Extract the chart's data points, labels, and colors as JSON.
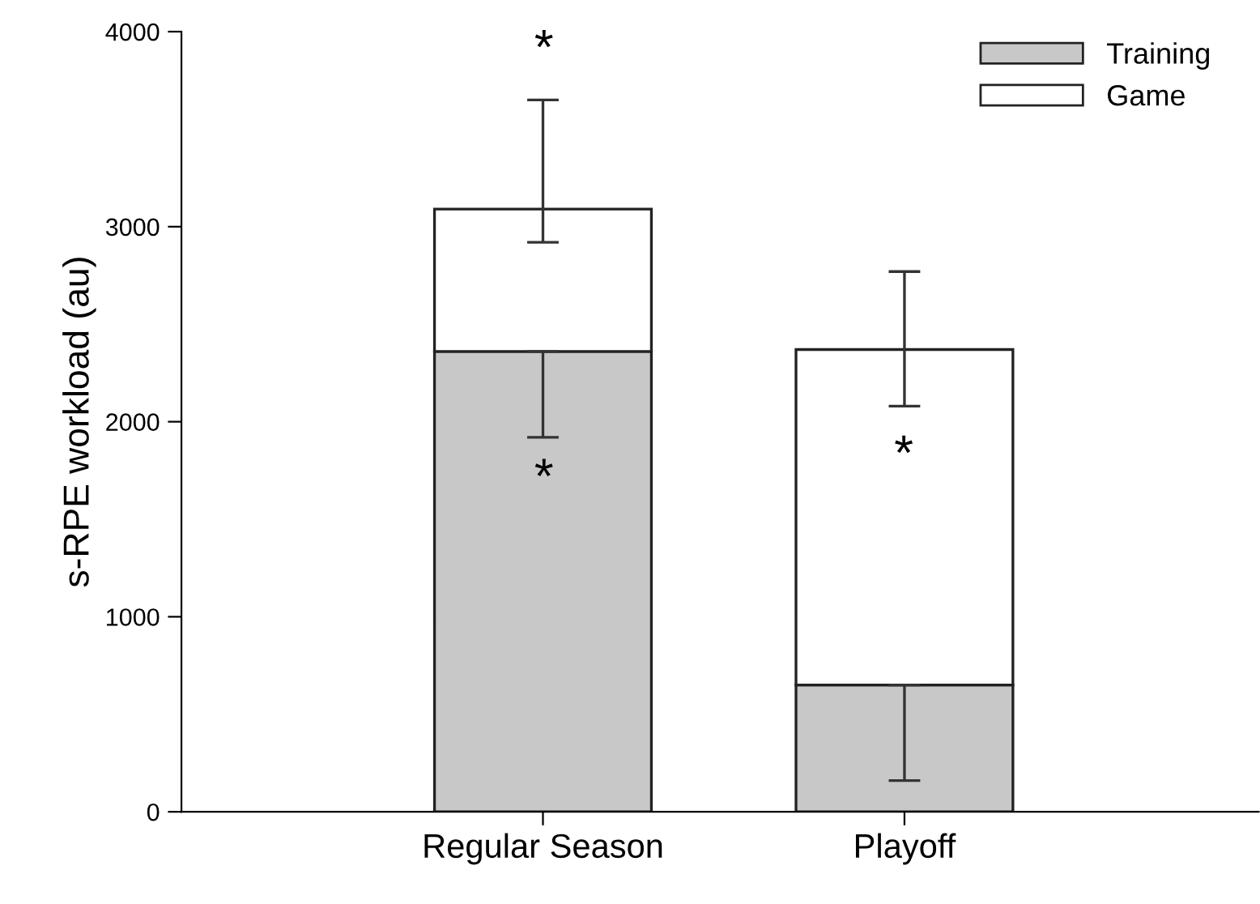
{
  "chart_data": {
    "type": "bar",
    "stacked": true,
    "ylabel": "s-RPE workload (au)",
    "categories": [
      "Regular Season",
      "Playoff"
    ],
    "series": [
      {
        "name": "Training",
        "color": "#c8c8c8",
        "values": [
          2360,
          650
        ],
        "errors": [
          [
            1920,
            2360
          ],
          [
            160,
            650
          ]
        ]
      },
      {
        "name": "Game",
        "color": "#ffffff",
        "values": [
          730,
          1720
        ],
        "errors": [
          [
            2920,
            3650
          ],
          [
            2080,
            2770
          ]
        ]
      }
    ],
    "ylim": [
      0,
      4000
    ],
    "yticks": [
      0,
      1000,
      2000,
      3000,
      4000
    ],
    "grid": false,
    "legend": "top right",
    "annotations": [
      "*",
      "*",
      "*"
    ]
  }
}
